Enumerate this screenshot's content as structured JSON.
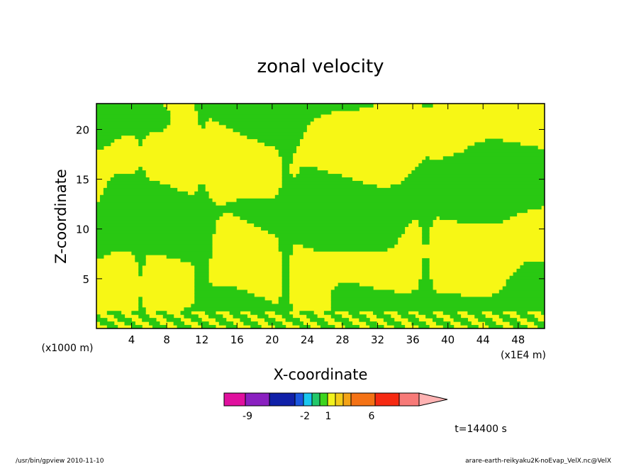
{
  "chart_data": {
    "type": "heatmap",
    "title": "zonal velocity",
    "xlabel": "X-coordinate",
    "ylabel": "Z-coordinate",
    "x_unit": "(x1E4 m)",
    "y_unit": "(x1000 m)",
    "xlim": [
      0,
      51
    ],
    "ylim": [
      0,
      22.6
    ],
    "x_ticks": [
      4,
      8,
      12,
      16,
      20,
      24,
      28,
      32,
      36,
      40,
      44,
      48
    ],
    "y_ticks": [
      5,
      10,
      15,
      20
    ],
    "colorbar": {
      "colors": [
        "#e0109e",
        "#8a20c0",
        "#1020a8",
        "#1a56e0",
        "#19c7ef",
        "#22c86a",
        "#3dd51f",
        "#f2f21d",
        "#f4cc19",
        "#f4a316",
        "#f47215",
        "#f62a12",
        "#f77a78",
        "#ffb3b3"
      ],
      "tick_labels": [
        "-9",
        "-2",
        "1",
        "6"
      ]
    },
    "time_label": "t=14400 s",
    "field_colors": {
      "positive": "#f7f715",
      "negative": "#29c812",
      "contour": "#000000"
    }
  },
  "footer": {
    "left": "/usr/bin/gpview   2010-11-10",
    "right": "arare-earth-reikyaku2K-noEvap_VelX.nc@VelX"
  }
}
